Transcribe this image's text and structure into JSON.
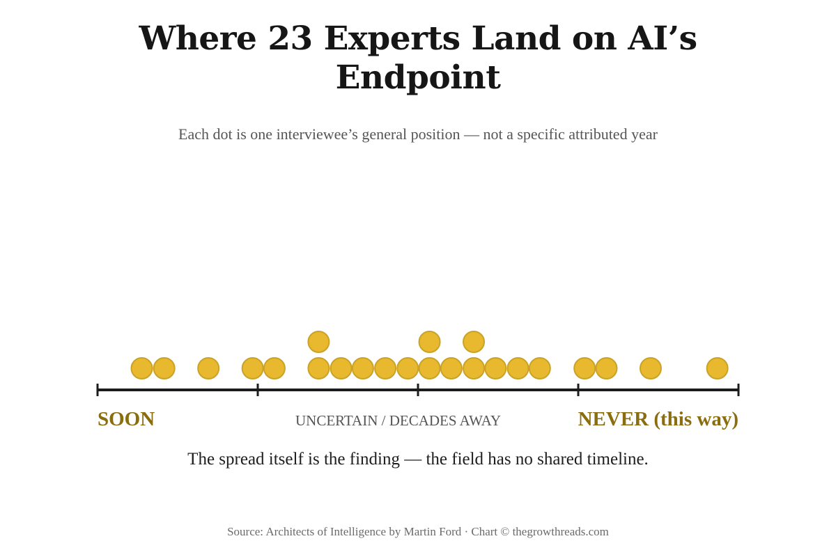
{
  "chart_data": {
    "type": "scatter",
    "title": "Where 23 Experts Land on AI’s Endpoint",
    "subtitle": "Each dot is one interviewee’s general position — not a specific attributed year",
    "scale_labels": {
      "left": "SOON",
      "middle": "UNCERTAIN / DECADES AWAY",
      "right": "NEVER (this way)"
    },
    "xlim": [
      0,
      1
    ],
    "ticks": [
      0,
      0.25,
      0.5,
      0.75,
      1
    ],
    "stack_levels": [
      0,
      1
    ],
    "points": [
      {
        "x": 0.069,
        "level": 0
      },
      {
        "x": 0.104,
        "level": 0
      },
      {
        "x": 0.173,
        "level": 0
      },
      {
        "x": 0.242,
        "level": 0
      },
      {
        "x": 0.276,
        "level": 0
      },
      {
        "x": 0.345,
        "level": 0
      },
      {
        "x": 0.345,
        "level": 1
      },
      {
        "x": 0.38,
        "level": 0
      },
      {
        "x": 0.414,
        "level": 0
      },
      {
        "x": 0.449,
        "level": 0
      },
      {
        "x": 0.484,
        "level": 0
      },
      {
        "x": 0.518,
        "level": 0
      },
      {
        "x": 0.518,
        "level": 1
      },
      {
        "x": 0.552,
        "level": 0
      },
      {
        "x": 0.587,
        "level": 0
      },
      {
        "x": 0.587,
        "level": 1
      },
      {
        "x": 0.621,
        "level": 0
      },
      {
        "x": 0.656,
        "level": 0
      },
      {
        "x": 0.69,
        "level": 0
      },
      {
        "x": 0.76,
        "level": 0
      },
      {
        "x": 0.794,
        "level": 0
      },
      {
        "x": 0.863,
        "level": 0
      },
      {
        "x": 0.967,
        "level": 0
      }
    ],
    "dot_color": "#e8b92e",
    "dot_stroke": "#c9a227",
    "axis_color": "#1c1c1e",
    "label_color": "#8a6d0e",
    "grid": false,
    "legend": "none"
  },
  "finding": "The spread itself is the finding — the field has no shared timeline.",
  "source": "Source: Architects of Intelligence by Martin Ford · Chart © thegrowthreads.com"
}
